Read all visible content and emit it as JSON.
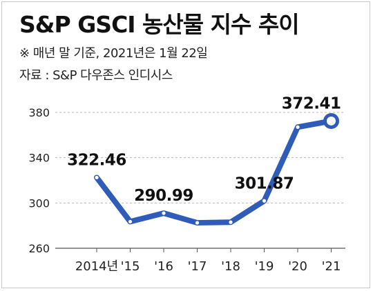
{
  "title": "S&P GSCI 농산물 지수 추이",
  "note": "※ 매년 말 기준, 2021년은 1월 22일",
  "source": "자료 : S&P 다우존스 인디시스",
  "colors": {
    "line": "#2e5cb8",
    "grid": "#b5b5b5",
    "marker_fill": "#ffffff"
  },
  "chart_data": {
    "type": "line",
    "title": "S&P GSCI 농산물 지수 추이",
    "categories": [
      "2014년",
      "'15",
      "'16",
      "'17",
      "'18",
      "'19",
      "'20",
      "'21"
    ],
    "values": [
      322.46,
      283.5,
      290.99,
      282.5,
      283.0,
      301.87,
      367.0,
      372.41
    ],
    "data_labels": [
      {
        "index": 0,
        "text": "322.46"
      },
      {
        "index": 2,
        "text": "290.99"
      },
      {
        "index": 5,
        "text": "301.87"
      },
      {
        "index": 7,
        "text": "372.41"
      }
    ],
    "highlight_index": 7,
    "ylim": [
      260,
      380
    ],
    "yticks": [
      260,
      300,
      340,
      380
    ],
    "grid": true
  }
}
